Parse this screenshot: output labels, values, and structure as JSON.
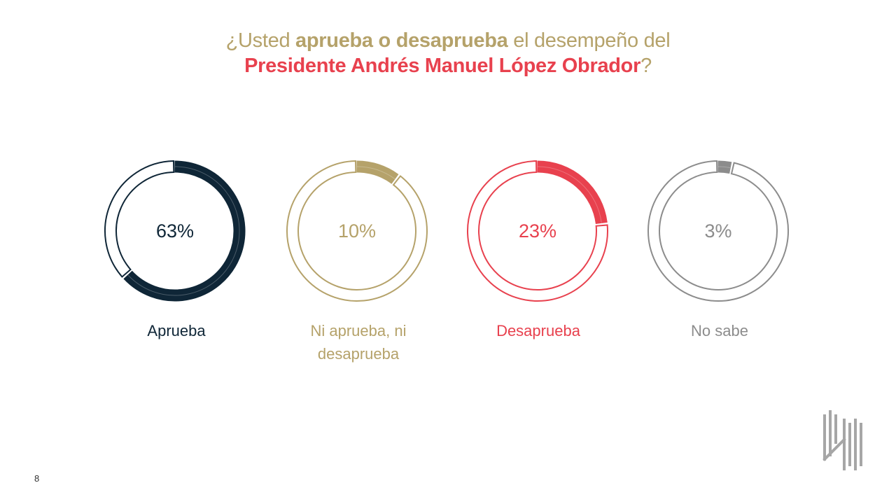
{
  "title": {
    "line1": {
      "prefix": "¿Usted ",
      "bold": "aprueba o desaprueba",
      "suffix": " el desempeño del"
    },
    "line2": {
      "bold": "Presidente Andrés Manuel López Obrador",
      "suffix": "?"
    }
  },
  "colors": {
    "title_gold": "#b5a26a",
    "title_red": "#e8414e"
  },
  "chart_data": {
    "type": "pie",
    "title": "¿Usted aprueba o desaprueba el desempeño del Presidente Andrés Manuel López Obrador?",
    "unit": "%",
    "series": [
      {
        "category": "Aprueba",
        "value": 63,
        "label": "63%",
        "color": "#0f2637"
      },
      {
        "category": "Ni aprueba, ni desaprueba",
        "value": 10,
        "label": "10%",
        "color": "#b5a26a"
      },
      {
        "category": "Desaprueba",
        "value": 23,
        "label": "23%",
        "color": "#e8414e"
      },
      {
        "category": "No sabe",
        "value": 3,
        "label": "3%",
        "color": "#8c8c8c"
      }
    ]
  },
  "labels": {
    "aprueba": "Aprueba",
    "ni_line1": "Ni aprueba, ni",
    "ni_line2": "desaprueba",
    "desaprueba": "Desaprueba",
    "no_sabe": "No sabe"
  },
  "page_number": "8"
}
